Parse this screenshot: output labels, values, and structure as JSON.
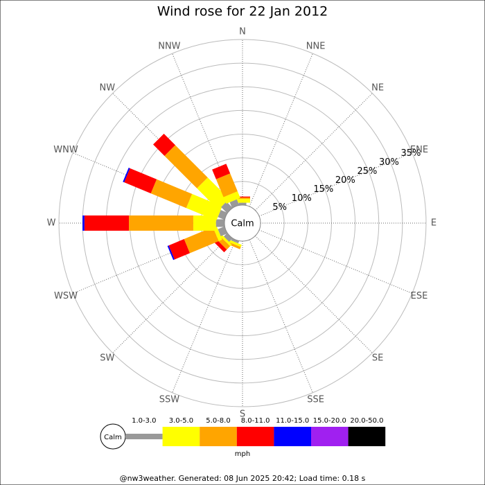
{
  "chart_data": {
    "type": "windrose",
    "title": "Wind rose for 22 Jan 2012",
    "categories": [
      "N",
      "NNE",
      "NE",
      "ENE",
      "E",
      "ESE",
      "SE",
      "SSE",
      "S",
      "SSW",
      "SW",
      "WSW",
      "W",
      "WNW",
      "NW",
      "NNW"
    ],
    "center_label": "Calm",
    "rlim": [
      0,
      35
    ],
    "rticks": [
      {
        "value": 5,
        "label": "5%"
      },
      {
        "value": 10,
        "label": "10%"
      },
      {
        "value": 15,
        "label": "15%"
      },
      {
        "value": 20,
        "label": "20%"
      },
      {
        "value": 25,
        "label": "25%"
      },
      {
        "value": 30,
        "label": "30%"
      },
      {
        "value": 35,
        "label": "35%"
      }
    ],
    "series": [
      {
        "name": "1.0-3.0",
        "color": "#999999",
        "values": [
          0.5,
          0,
          0,
          0,
          0,
          0,
          0,
          0,
          0,
          0.5,
          1,
          1.5,
          1.8,
          1.5,
          1.8,
          1.3
        ]
      },
      {
        "name": "3.0-5.0",
        "color": "#ffff00",
        "values": [
          0.8,
          0,
          0,
          0,
          0,
          0,
          0,
          0,
          0,
          0.5,
          0.5,
          0.8,
          4.8,
          6.9,
          6.4,
          1.5
        ]
      },
      {
        "name": "5.0-8.0",
        "color": "#ffa500",
        "values": [
          0.3,
          0,
          0,
          0,
          0,
          0,
          0,
          0,
          0,
          0.5,
          1,
          6.6,
          13.6,
          8.1,
          9.7,
          4.1
        ]
      },
      {
        "name": "8.0-11.0",
        "color": "#ff0000",
        "values": [
          0.2,
          0,
          0,
          0,
          0,
          0,
          0,
          0,
          0,
          0,
          0.8,
          3.5,
          9.4,
          6.1,
          3.4,
          2.2
        ]
      },
      {
        "name": "11.0-15.0",
        "color": "#0000ff",
        "values": [
          0,
          0,
          0,
          0,
          0,
          0,
          0,
          0,
          0,
          0,
          0,
          0.3,
          0.4,
          0.3,
          0,
          0
        ]
      },
      {
        "name": "15.0-20.0",
        "color": "#a020f0",
        "values": [
          0,
          0,
          0,
          0,
          0,
          0,
          0,
          0,
          0,
          0,
          0,
          0,
          0,
          0,
          0,
          0
        ]
      },
      {
        "name": "20.0-50.0",
        "color": "#000000",
        "values": [
          0,
          0,
          0,
          0,
          0,
          0,
          0,
          0,
          0,
          0,
          0,
          0,
          0,
          0,
          0,
          0
        ]
      }
    ],
    "unit": "mph",
    "footer": "@nw3weather. Generated: 08 Jun 2025 20:42; Load time: 0.18 s"
  }
}
